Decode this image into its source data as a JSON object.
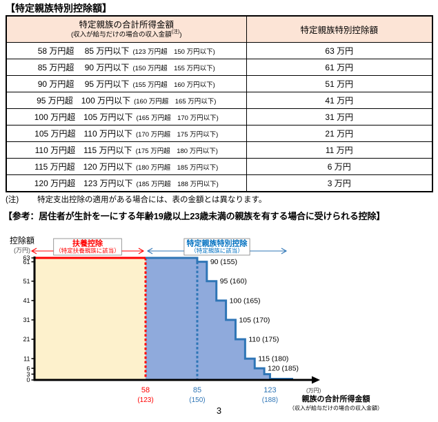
{
  "page_number": "3",
  "colors": {
    "header_bg": "#fce4d6",
    "red": "#ff0000",
    "blue_line": "#2e75b6",
    "blue_fill": "#8faadc",
    "yellow_fill": "#fdf1cc",
    "label_blue": "#0070c0",
    "tick_blue": "#2e75b6",
    "box_border": "#7f7f7f",
    "axis": "#000000"
  },
  "table_section": {
    "title": "【特定親族特別控除額】",
    "header": {
      "col1_main": "特定親族の合計所得金額",
      "col1_sub_prefix": "(収入が給与だけの場合の収入金額",
      "col1_sub_sup": "(注)",
      "col1_sub_suffix": ")",
      "col2": "特定親族特別控除額"
    },
    "rows": [
      {
        "income": "58 万円超　 85 万円以下",
        "salary": "(123 万円超　150 万円以下)",
        "deduction": "63 万円"
      },
      {
        "income": "85 万円超　 90 万円以下",
        "salary": "(150 万円超　155 万円以下)",
        "deduction": "61 万円"
      },
      {
        "income": "90 万円超　 95 万円以下",
        "salary": "(155 万円超　160 万円以下)",
        "deduction": "51 万円"
      },
      {
        "income": "95 万円超　100 万円以下",
        "salary": "(160 万円超　165 万円以下)",
        "deduction": "41 万円"
      },
      {
        "income": "100 万円超　105 万円以下",
        "salary": "(165 万円超　170 万円以下)",
        "deduction": "31 万円"
      },
      {
        "income": "105 万円超　110 万円以下",
        "salary": "(170 万円超　175 万円以下)",
        "deduction": "21 万円"
      },
      {
        "income": "110 万円超　115 万円以下",
        "salary": "(175 万円超　180 万円以下)",
        "deduction": "11 万円"
      },
      {
        "income": "115 万円超　120 万円以下",
        "salary": "(180 万円超　185 万円以下)",
        "deduction": "6 万円"
      },
      {
        "income": "120 万円超　123 万円以下",
        "salary": "(185 万円超　188 万円以下)",
        "deduction": "3 万円"
      }
    ],
    "note_label": "(注)",
    "note_text": "特定支出控除の適用がある場合には、表の金額とは異なります。"
  },
  "chart_section": {
    "title": "【参考：居住者が生計を一にする年齢19歳以上23歳未満の親族を有する場合に受けられる控除】"
  },
  "chart_data": {
    "type": "area",
    "title": "",
    "y_axis_title": "控除額",
    "y_axis_unit": "(万円)",
    "x_axis_unit": "(万円)",
    "x_axis_title": "親族の合計所得金額",
    "x_axis_subtitle": "（収入が給与だけの場合の収入金額）",
    "ylim": [
      0,
      63
    ],
    "xlim": [
      0,
      145
    ],
    "y_ticks": [
      0,
      3,
      6,
      11,
      21,
      31,
      41,
      51,
      61,
      63
    ],
    "x_ticks": [
      {
        "income": 58,
        "salary": 123,
        "color": "red"
      },
      {
        "income": 85,
        "salary": 150,
        "color": "blue"
      },
      {
        "income": 123,
        "salary": 188,
        "color": "blue"
      }
    ],
    "regions": [
      {
        "name": "扶養控除",
        "sub": "（特定扶養親族に該当）",
        "from": 0,
        "to": 58,
        "value": 63,
        "fill": "yellow",
        "color": "red"
      },
      {
        "name": "特定親族特別控除",
        "sub": "（特定親族に該当）",
        "from": 58,
        "to": 123,
        "fill": "blue",
        "color": "blue"
      }
    ],
    "steps": [
      {
        "from": 58,
        "to": 85,
        "value": 63
      },
      {
        "from": 85,
        "to": 90,
        "value": 61
      },
      {
        "from": 90,
        "to": 95,
        "value": 51
      },
      {
        "from": 95,
        "to": 100,
        "value": 41
      },
      {
        "from": 100,
        "to": 105,
        "value": 31
      },
      {
        "from": 105,
        "to": 110,
        "value": 21
      },
      {
        "from": 110,
        "to": 115,
        "value": 11
      },
      {
        "from": 115,
        "to": 120,
        "value": 6
      },
      {
        "from": 120,
        "to": 123,
        "value": 3
      }
    ],
    "step_labels": [
      {
        "income": 90,
        "salary": 155
      },
      {
        "income": 95,
        "salary": 160
      },
      {
        "income": 100,
        "salary": 165
      },
      {
        "income": 105,
        "salary": 170
      },
      {
        "income": 110,
        "salary": 175
      },
      {
        "income": 115,
        "salary": 180
      },
      {
        "income": 120,
        "salary": 185
      }
    ],
    "guides": [
      {
        "x": 58,
        "top": 63,
        "color": "red"
      },
      {
        "x": 85,
        "top": 61,
        "color": "blue"
      }
    ]
  }
}
